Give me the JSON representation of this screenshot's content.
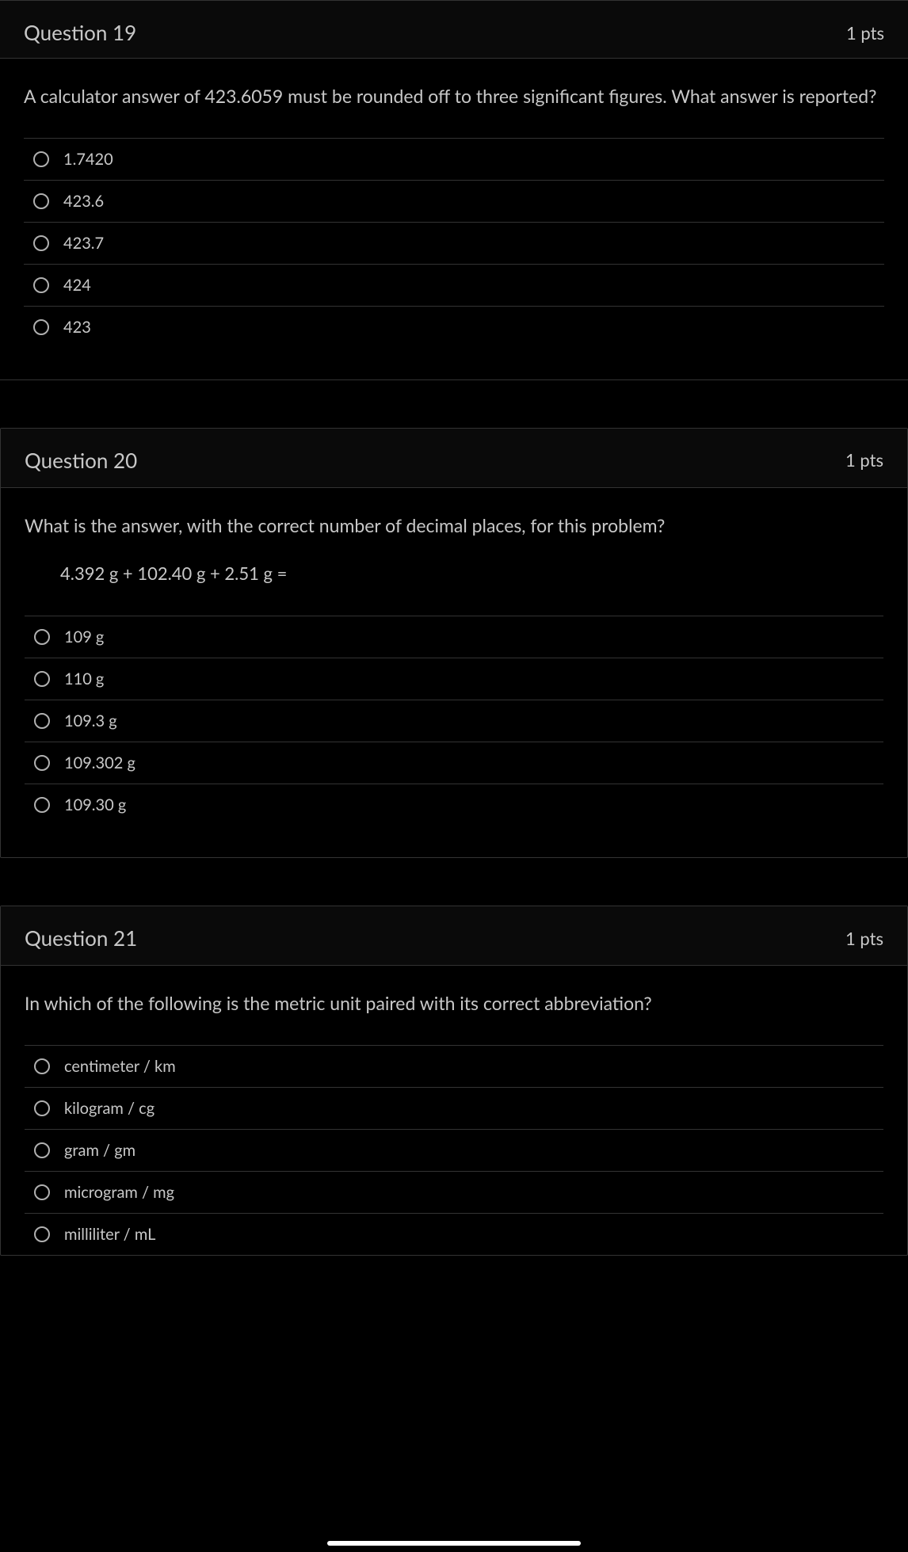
{
  "questions": [
    {
      "number": "Question 19",
      "points": "1 pts",
      "prompt": "A calculator answer of 423.6059 must be rounded off to three significant figures. What answer is reported?",
      "subtext": "",
      "options": [
        "1.7420",
        "423.6",
        "423.7",
        "424",
        "423"
      ]
    },
    {
      "number": "Question 20",
      "points": "1 pts",
      "prompt": "What is the answer, with the correct number of decimal places, for this problem?",
      "subtext": "4.392 g + 102.40 g + 2.51 g =",
      "options": [
        "109 g",
        "110 g",
        "109.3 g",
        "109.302 g",
        "109.30 g"
      ]
    },
    {
      "number": "Question 21",
      "points": "1 pts",
      "prompt": "In which of the following is the metric unit paired with its correct abbreviation?",
      "subtext": "",
      "options": [
        "centimeter / km",
        "kilogram / cg",
        "gram / gm",
        "microgram / mg",
        "milliliter / mL"
      ]
    }
  ],
  "colors": {
    "background": "#000000",
    "text": "#c8c8c8",
    "border": "#333333",
    "radio_border": "#b0b0b0",
    "indicator": "#ffffff"
  }
}
